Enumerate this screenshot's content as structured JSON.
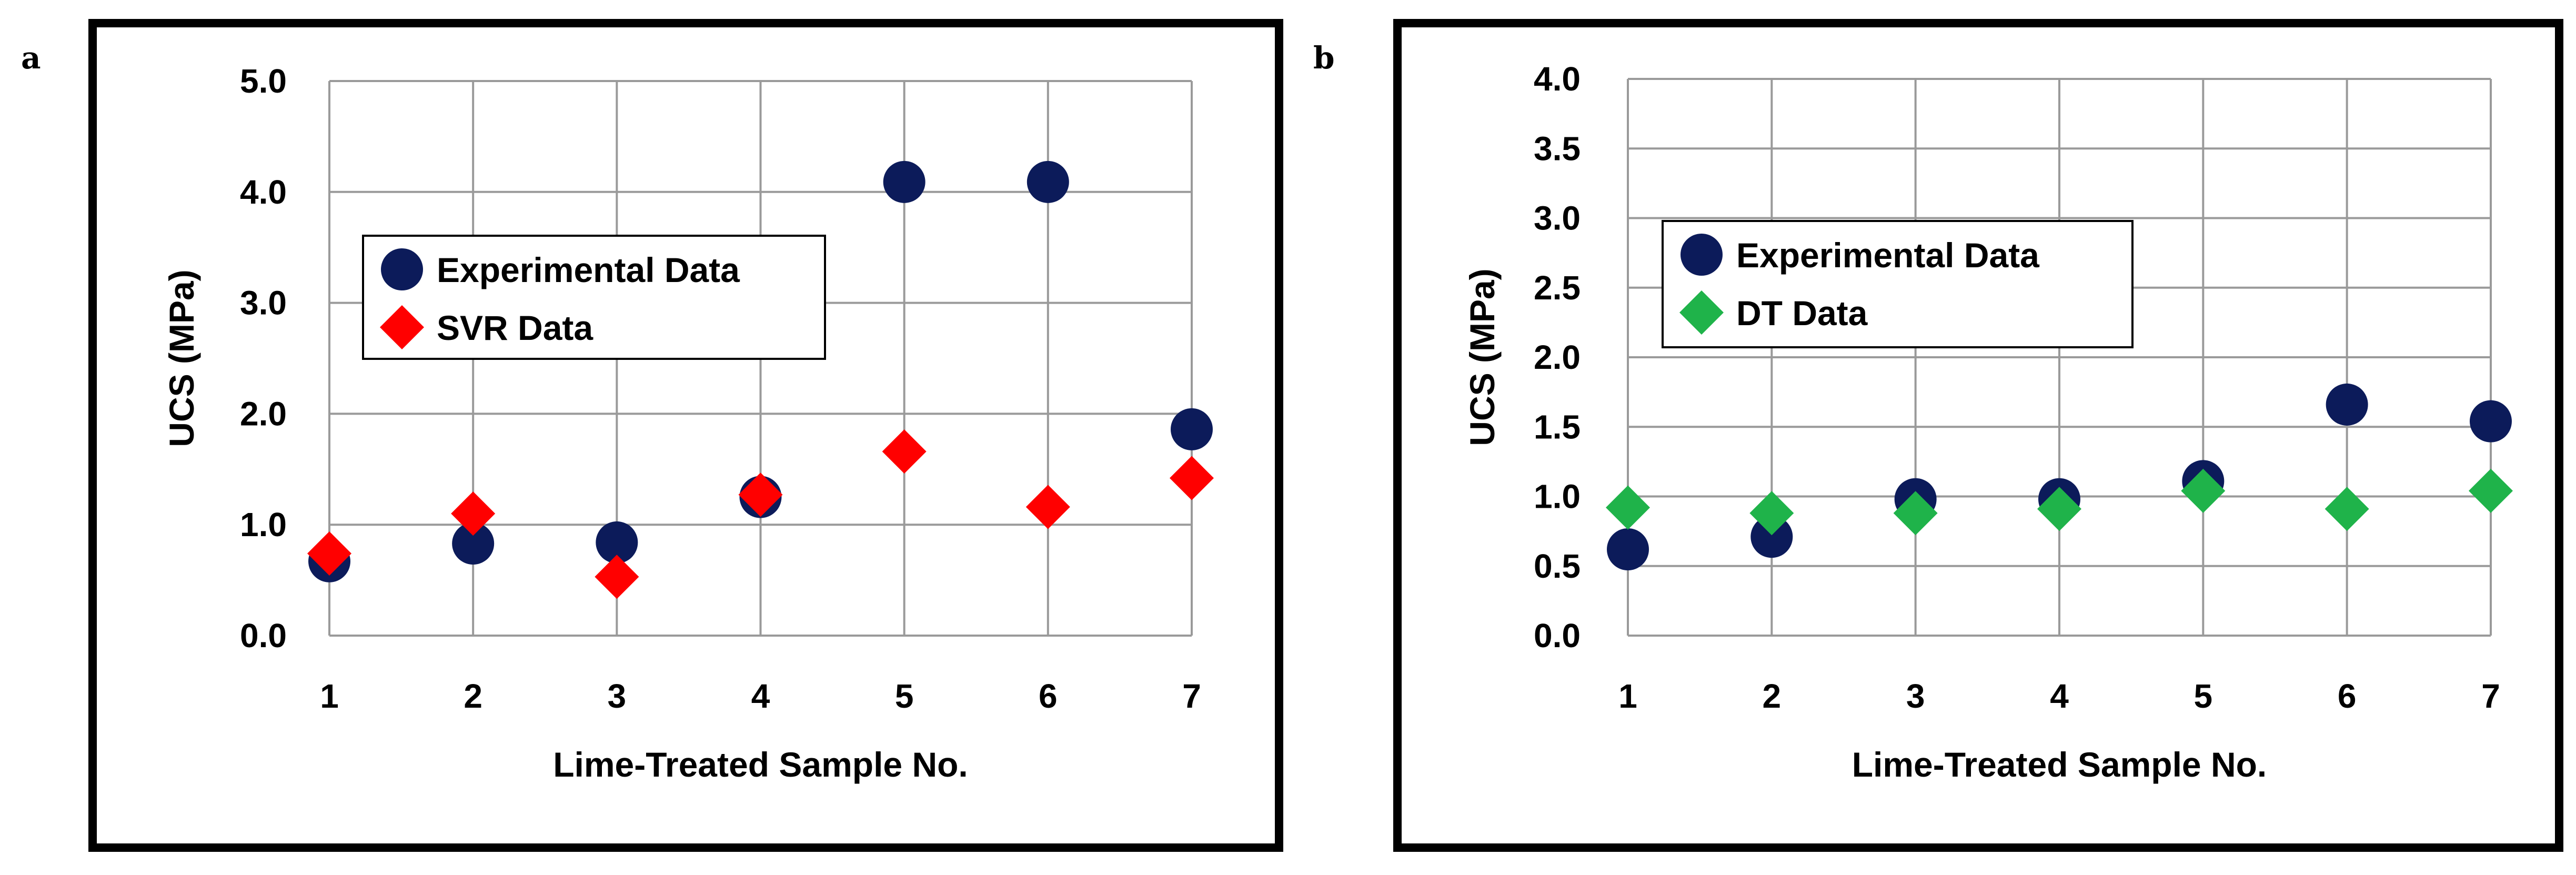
{
  "chart_data": [
    {
      "type": "scatter",
      "panel_label": "a",
      "title": "",
      "xlabel": "Lime-Treated Sample No.",
      "ylabel": "UCS (MPa)",
      "x": [
        1,
        2,
        3,
        4,
        5,
        6,
        7
      ],
      "x_ticks": [
        "1",
        "2",
        "3",
        "4",
        "5",
        "6",
        "7"
      ],
      "y_ticks": [
        "0.0",
        "1.0",
        "2.0",
        "3.0",
        "4.0",
        "5.0"
      ],
      "xlim": [
        1,
        7
      ],
      "ylim": [
        0,
        5
      ],
      "grid": true,
      "legend_position": "center-left",
      "series": [
        {
          "name": "Experimental Data",
          "marker": "circle",
          "color": "#0c1b5a",
          "values": [
            0.67,
            0.83,
            0.84,
            1.25,
            4.09,
            4.09,
            1.86
          ]
        },
        {
          "name": "SVR Data",
          "marker": "diamond",
          "color": "#ff0000",
          "values": [
            0.74,
            1.1,
            0.53,
            1.27,
            1.66,
            1.16,
            1.42
          ]
        }
      ]
    },
    {
      "type": "scatter",
      "panel_label": "b",
      "title": "",
      "xlabel": "Lime-Treated Sample No.",
      "ylabel": "UCS (MPa)",
      "x": [
        1,
        2,
        3,
        4,
        5,
        6,
        7
      ],
      "x_ticks": [
        "1",
        "2",
        "3",
        "4",
        "5",
        "6",
        "7"
      ],
      "y_ticks": [
        "0.0",
        "0.5",
        "1.0",
        "1.5",
        "2.0",
        "2.5",
        "3.0",
        "3.5",
        "4.0"
      ],
      "xlim": [
        1,
        7
      ],
      "ylim": [
        0,
        4
      ],
      "grid": true,
      "legend_position": "center-left",
      "series": [
        {
          "name": "Experimental Data",
          "marker": "circle",
          "color": "#0c1b5a",
          "values": [
            0.62,
            0.71,
            0.98,
            0.98,
            1.11,
            1.66,
            1.54
          ]
        },
        {
          "name": "DT Data",
          "marker": "diamond",
          "color": "#1fb34a",
          "values": [
            0.92,
            0.88,
            0.88,
            0.91,
            1.04,
            0.91,
            1.04
          ]
        }
      ]
    }
  ]
}
